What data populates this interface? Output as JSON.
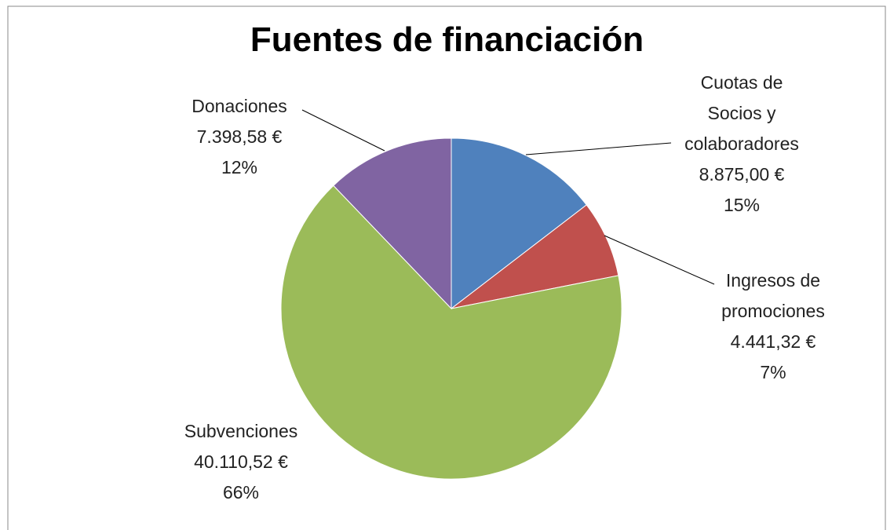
{
  "chart_data": {
    "type": "pie",
    "title": "Fuentes de financiación",
    "categories": [
      "Cuotas de Socios y colaboradores",
      "Ingresos de promociones",
      "Subvenciones",
      "Donaciones"
    ],
    "values": [
      8875.0,
      4441.32,
      40110.52,
      7398.58
    ],
    "value_labels": [
      "8.875,00 €",
      "4.441,32 €",
      "40.110,52 €",
      "7.398,58 €"
    ],
    "percent_labels": [
      "15%",
      "7%",
      "66%",
      "12%"
    ],
    "colors": [
      "#4f81bd",
      "#c0504d",
      "#9bbb59",
      "#8064a2"
    ]
  }
}
